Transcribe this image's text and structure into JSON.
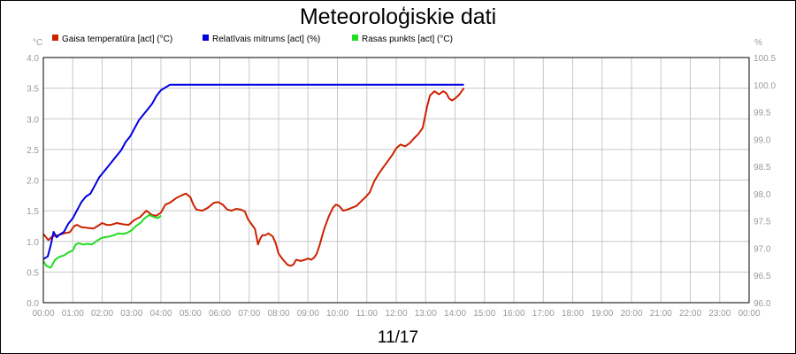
{
  "chart_data": {
    "type": "line",
    "title": "Meteoroloģiskie dati",
    "date_label": "11/17",
    "left_axis": {
      "unit": "°C",
      "ylim": [
        0.0,
        4.0
      ],
      "ticks": [
        "0.0",
        "0.5",
        "1.0",
        "1.5",
        "2.0",
        "2.5",
        "3.0",
        "3.5",
        "4.0"
      ]
    },
    "right_axis": {
      "unit": "%",
      "ylim": [
        96.0,
        100.5
      ],
      "ticks": [
        "96.0",
        "96.5",
        "97.0",
        "97.5",
        "98.0",
        "98.5",
        "99.0",
        "99.5",
        "100.0",
        "100.5"
      ]
    },
    "x_ticks": [
      "00:00",
      "01:00",
      "02:00",
      "03:00",
      "04:00",
      "05:00",
      "06:00",
      "07:00",
      "08:00",
      "09:00",
      "10:00",
      "11:00",
      "12:00",
      "13:00",
      "14:00",
      "15:00",
      "16:00",
      "17:00",
      "18:00",
      "19:00",
      "20:00",
      "21:00",
      "22:00",
      "23:00",
      "00:00"
    ],
    "xlim_hours": [
      0,
      24
    ],
    "grid": true,
    "legend_position": "top-left",
    "series": [
      {
        "name": "Gaisa temperatūra [act] (°C)",
        "color": "#cc2200",
        "axis": "left",
        "points": [
          [
            0.0,
            1.12
          ],
          [
            0.17,
            1.02
          ],
          [
            0.3,
            1.08
          ],
          [
            0.5,
            1.1
          ],
          [
            0.7,
            1.13
          ],
          [
            0.9,
            1.15
          ],
          [
            1.05,
            1.25
          ],
          [
            1.15,
            1.27
          ],
          [
            1.3,
            1.23
          ],
          [
            1.5,
            1.22
          ],
          [
            1.7,
            1.21
          ],
          [
            1.85,
            1.25
          ],
          [
            2.0,
            1.3
          ],
          [
            2.15,
            1.27
          ],
          [
            2.3,
            1.27
          ],
          [
            2.5,
            1.3
          ],
          [
            2.7,
            1.28
          ],
          [
            2.9,
            1.27
          ],
          [
            3.1,
            1.35
          ],
          [
            3.3,
            1.4
          ],
          [
            3.5,
            1.5
          ],
          [
            3.7,
            1.43
          ],
          [
            3.85,
            1.42
          ],
          [
            4.0,
            1.47
          ],
          [
            4.15,
            1.6
          ],
          [
            4.3,
            1.63
          ],
          [
            4.5,
            1.7
          ],
          [
            4.7,
            1.75
          ],
          [
            4.85,
            1.78
          ],
          [
            5.0,
            1.72
          ],
          [
            5.1,
            1.6
          ],
          [
            5.2,
            1.52
          ],
          [
            5.4,
            1.5
          ],
          [
            5.6,
            1.55
          ],
          [
            5.8,
            1.63
          ],
          [
            5.95,
            1.64
          ],
          [
            6.1,
            1.6
          ],
          [
            6.25,
            1.52
          ],
          [
            6.4,
            1.5
          ],
          [
            6.55,
            1.53
          ],
          [
            6.7,
            1.52
          ],
          [
            6.85,
            1.49
          ],
          [
            6.95,
            1.37
          ],
          [
            7.05,
            1.3
          ],
          [
            7.2,
            1.2
          ],
          [
            7.3,
            0.95
          ],
          [
            7.38,
            1.05
          ],
          [
            7.45,
            1.1
          ],
          [
            7.55,
            1.1
          ],
          [
            7.65,
            1.13
          ],
          [
            7.8,
            1.08
          ],
          [
            7.9,
            0.97
          ],
          [
            8.0,
            0.8
          ],
          [
            8.15,
            0.7
          ],
          [
            8.3,
            0.62
          ],
          [
            8.4,
            0.6
          ],
          [
            8.5,
            0.62
          ],
          [
            8.6,
            0.7
          ],
          [
            8.75,
            0.68
          ],
          [
            8.9,
            0.7
          ],
          [
            9.0,
            0.72
          ],
          [
            9.1,
            0.7
          ],
          [
            9.2,
            0.73
          ],
          [
            9.3,
            0.8
          ],
          [
            9.4,
            0.95
          ],
          [
            9.55,
            1.2
          ],
          [
            9.7,
            1.4
          ],
          [
            9.85,
            1.55
          ],
          [
            9.95,
            1.6
          ],
          [
            10.05,
            1.58
          ],
          [
            10.2,
            1.5
          ],
          [
            10.35,
            1.52
          ],
          [
            10.5,
            1.55
          ],
          [
            10.65,
            1.58
          ],
          [
            10.8,
            1.65
          ],
          [
            10.95,
            1.72
          ],
          [
            11.1,
            1.8
          ],
          [
            11.25,
            1.98
          ],
          [
            11.4,
            2.1
          ],
          [
            11.55,
            2.2
          ],
          [
            11.7,
            2.3
          ],
          [
            11.85,
            2.4
          ],
          [
            12.0,
            2.52
          ],
          [
            12.15,
            2.58
          ],
          [
            12.3,
            2.55
          ],
          [
            12.45,
            2.6
          ],
          [
            12.6,
            2.68
          ],
          [
            12.75,
            2.75
          ],
          [
            12.9,
            2.85
          ],
          [
            13.05,
            3.2
          ],
          [
            13.15,
            3.38
          ],
          [
            13.3,
            3.45
          ],
          [
            13.45,
            3.4
          ],
          [
            13.6,
            3.45
          ],
          [
            13.7,
            3.42
          ],
          [
            13.8,
            3.33
          ],
          [
            13.9,
            3.3
          ],
          [
            14.0,
            3.33
          ],
          [
            14.15,
            3.4
          ],
          [
            14.3,
            3.5
          ]
        ]
      },
      {
        "name": "Relatīvais mitrums [act] (%)",
        "color": "#0000dd",
        "axis": "right",
        "points": [
          [
            0.0,
            96.8
          ],
          [
            0.15,
            96.85
          ],
          [
            0.25,
            97.05
          ],
          [
            0.35,
            97.3
          ],
          [
            0.45,
            97.2
          ],
          [
            0.55,
            97.25
          ],
          [
            0.7,
            97.3
          ],
          [
            0.85,
            97.45
          ],
          [
            1.0,
            97.55
          ],
          [
            1.1,
            97.65
          ],
          [
            1.2,
            97.75
          ],
          [
            1.3,
            97.85
          ],
          [
            1.45,
            97.95
          ],
          [
            1.6,
            98.0
          ],
          [
            1.75,
            98.15
          ],
          [
            1.9,
            98.3
          ],
          [
            2.05,
            98.4
          ],
          [
            2.2,
            98.5
          ],
          [
            2.35,
            98.6
          ],
          [
            2.5,
            98.7
          ],
          [
            2.65,
            98.8
          ],
          [
            2.8,
            98.95
          ],
          [
            2.95,
            99.05
          ],
          [
            3.1,
            99.2
          ],
          [
            3.25,
            99.35
          ],
          [
            3.4,
            99.45
          ],
          [
            3.55,
            99.55
          ],
          [
            3.7,
            99.65
          ],
          [
            3.85,
            99.8
          ],
          [
            4.0,
            99.9
          ],
          [
            4.15,
            99.95
          ],
          [
            4.3,
            100.0
          ],
          [
            5.0,
            100.0
          ],
          [
            6.0,
            100.0
          ],
          [
            8.0,
            100.0
          ],
          [
            10.0,
            100.0
          ],
          [
            12.0,
            100.0
          ],
          [
            14.3,
            100.0
          ]
        ]
      },
      {
        "name": "Rasas punkts [act] (°C)",
        "color": "#22dd22",
        "axis": "left",
        "points": [
          [
            0.0,
            0.68
          ],
          [
            0.1,
            0.6
          ],
          [
            0.25,
            0.57
          ],
          [
            0.4,
            0.7
          ],
          [
            0.55,
            0.75
          ],
          [
            0.7,
            0.77
          ],
          [
            0.85,
            0.82
          ],
          [
            1.0,
            0.85
          ],
          [
            1.1,
            0.95
          ],
          [
            1.2,
            0.97
          ],
          [
            1.35,
            0.95
          ],
          [
            1.5,
            0.96
          ],
          [
            1.65,
            0.95
          ],
          [
            1.8,
            1.0
          ],
          [
            1.95,
            1.05
          ],
          [
            2.1,
            1.07
          ],
          [
            2.25,
            1.08
          ],
          [
            2.4,
            1.1
          ],
          [
            2.55,
            1.13
          ],
          [
            2.7,
            1.12
          ],
          [
            2.85,
            1.14
          ],
          [
            3.0,
            1.18
          ],
          [
            3.15,
            1.25
          ],
          [
            3.3,
            1.3
          ],
          [
            3.45,
            1.38
          ],
          [
            3.6,
            1.43
          ],
          [
            3.75,
            1.4
          ],
          [
            3.9,
            1.38
          ],
          [
            4.0,
            1.42
          ]
        ]
      }
    ]
  }
}
